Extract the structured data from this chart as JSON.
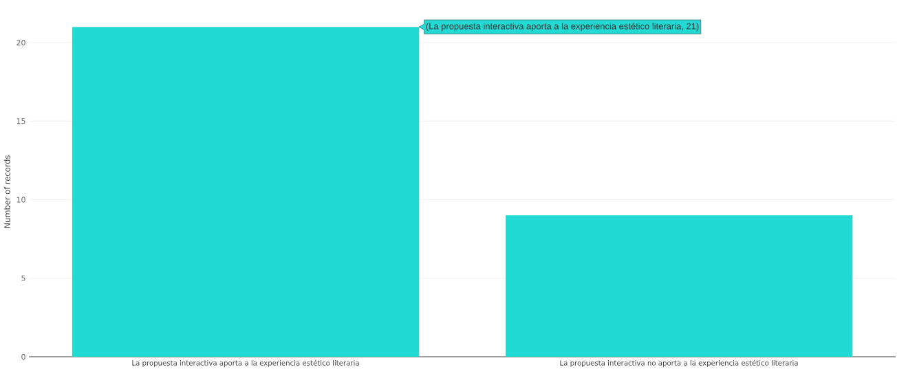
{
  "chart_data": {
    "type": "bar",
    "ylabel": "Number of records",
    "categories": [
      "La propuesta interactiva aporta a la experiencia estético literaria",
      "La propuesta interactiva no aporta a la experiencia estético literaria"
    ],
    "values": [
      21,
      9
    ],
    "color": "#22dad4",
    "ylim": [
      0,
      21
    ],
    "yticks": [
      0,
      5,
      10,
      15,
      20
    ],
    "grid": "y",
    "annotations": [
      "(La propuesta interactiva aporta a la experiencia estético literaria, 21)"
    ]
  }
}
